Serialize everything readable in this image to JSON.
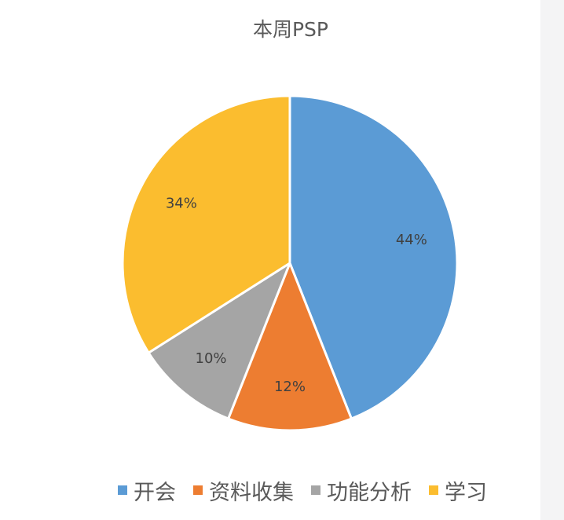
{
  "chart_data": {
    "type": "pie",
    "title": "本周PSP",
    "categories": [
      "开会",
      "资料收集",
      "功能分析",
      "学习"
    ],
    "values": [
      44,
      12,
      10,
      34
    ],
    "labels": [
      "44%",
      "12%",
      "10%",
      "34%"
    ],
    "colors": [
      "#5b9bd5",
      "#ed7d31",
      "#a5a5a5",
      "#fbbd2f"
    ],
    "legend": "bottom"
  }
}
